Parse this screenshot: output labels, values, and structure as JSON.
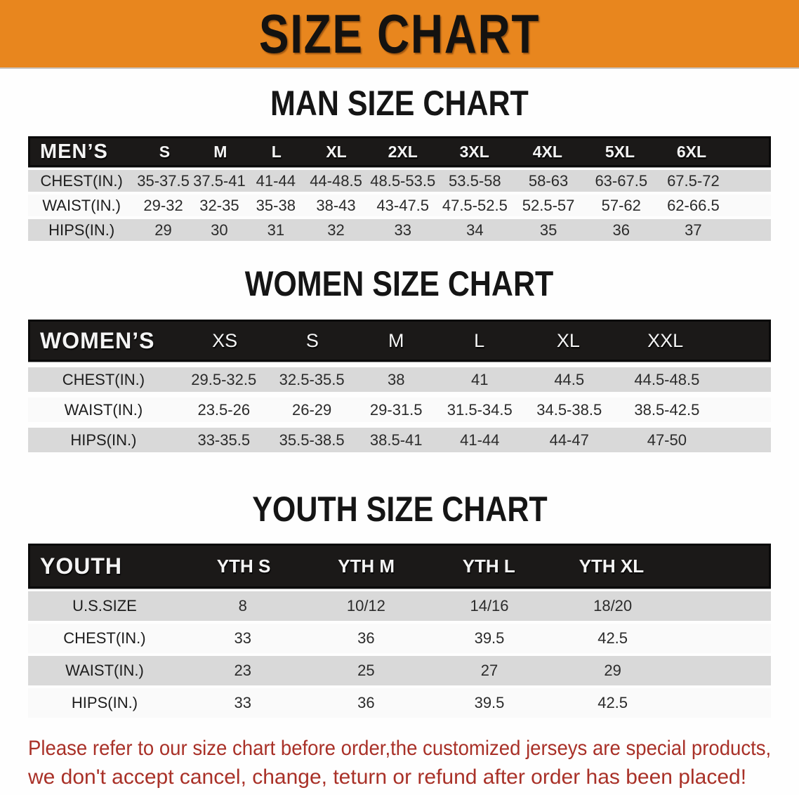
{
  "banner": {
    "title": "SIZE CHART",
    "bg_color": "#E8861E",
    "text_color": "#141210"
  },
  "sections": [
    {
      "id": "men",
      "heading": "MAN SIZE CHART",
      "corner_label": "MEN’S",
      "columns": [
        "S",
        "M",
        "L",
        "XL",
        "2XL",
        "3XL",
        "4XL",
        "5XL",
        "6XL"
      ],
      "rows": [
        {
          "label": "CHEST(IN.)",
          "values": [
            "35-37.5",
            "37.5-41",
            "41-44",
            "44-48.5",
            "48.5-53.5",
            "53.5-58",
            "58-63",
            "63-67.5",
            "67.5-72"
          ]
        },
        {
          "label": "WAIST(IN.)",
          "values": [
            "29-32",
            "32-35",
            "35-38",
            "38-43",
            "43-47.5",
            "47.5-52.5",
            "52.5-57",
            "57-62",
            "62-66.5"
          ]
        },
        {
          "label": "HIPS(IN.)",
          "values": [
            "29",
            "30",
            "31",
            "32",
            "33",
            "34",
            "35",
            "36",
            "37"
          ]
        }
      ]
    },
    {
      "id": "women",
      "heading": "WOMEN SIZE CHART",
      "corner_label": "WOMEN’S",
      "columns": [
        "XS",
        "S",
        "M",
        "L",
        "XL",
        "XXL"
      ],
      "rows": [
        {
          "label": "CHEST(IN.)",
          "values": [
            "29.5-32.5",
            "32.5-35.5",
            "38",
            "41",
            "44.5",
            "44.5-48.5"
          ]
        },
        {
          "label": "WAIST(IN.)",
          "values": [
            "23.5-26",
            "26-29",
            "29-31.5",
            "31.5-34.5",
            "34.5-38.5",
            "38.5-42.5"
          ]
        },
        {
          "label": "HIPS(IN.)",
          "values": [
            "33-35.5",
            "35.5-38.5",
            "38.5-41",
            "41-44",
            "44-47",
            "47-50"
          ]
        }
      ]
    },
    {
      "id": "youth",
      "heading": "YOUTH SIZE CHART",
      "corner_label": "YOUTH",
      "columns": [
        "YTH S",
        "YTH M",
        "YTH L",
        "YTH XL"
      ],
      "rows": [
        {
          "label": "U.S.SIZE",
          "values": [
            "8",
            "10/12",
            "14/16",
            "18/20"
          ]
        },
        {
          "label": "CHEST(IN.)",
          "values": [
            "33",
            "36",
            "39.5",
            "42.5"
          ]
        },
        {
          "label": "WAIST(IN.)",
          "values": [
            "23",
            "25",
            "27",
            "29"
          ]
        },
        {
          "label": "HIPS(IN.)",
          "values": [
            "33",
            "36",
            "39.5",
            "42.5"
          ]
        }
      ]
    }
  ],
  "notice": {
    "lines": [
      "Please refer to our size chart before order,the customized jerseys are special products,",
      "we don't accept cancel, change, teturn or refund after order has been placed!"
    ],
    "text_color": "#A93128"
  },
  "colors": {
    "header_bar": "#1B1918",
    "row_gray": "#D9D9D9",
    "row_white": "#FAFAFA"
  }
}
